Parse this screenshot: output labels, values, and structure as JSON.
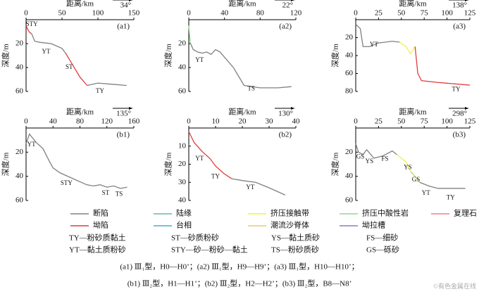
{
  "chart_data": [
    {
      "type": "line",
      "label": "(a1)",
      "direction": "34°",
      "xlabel": "距离/km",
      "ylabel": "深度/m",
      "xlim": [
        0,
        150
      ],
      "xticks": [
        0,
        50,
        100,
        150
      ],
      "ylim": [
        0,
        60
      ],
      "yticks": [
        20,
        40,
        60
      ],
      "series": [
        {
          "color": "#e03c3c",
          "x": [
            0,
            4,
            8
          ],
          "values": [
            5,
            10,
            12
          ]
        },
        {
          "color": "#808080",
          "x": [
            8,
            12,
            20,
            35,
            50,
            55
          ],
          "values": [
            12,
            18,
            19,
            20,
            24,
            28
          ]
        },
        {
          "color": "#e03c3c",
          "x": [
            55,
            65,
            75,
            85
          ],
          "values": [
            28,
            38,
            48,
            55
          ]
        },
        {
          "color": "#808080",
          "x": [
            85,
            100,
            120,
            140
          ],
          "values": [
            55,
            53,
            54,
            55
          ]
        }
      ],
      "annotations": [
        "STY",
        "YT",
        "ST",
        "TY"
      ]
    },
    {
      "type": "line",
      "label": "(a2)",
      "direction": "22°",
      "xlabel": "距离/km",
      "ylabel": "深度/m",
      "xlim": [
        0,
        120
      ],
      "xticks": [
        0,
        40,
        80,
        120
      ],
      "ylim": [
        0,
        60
      ],
      "yticks": [
        20,
        40,
        60
      ],
      "series": [
        {
          "color": "#8fd88f",
          "x": [
            0,
            1,
            2
          ],
          "values": [
            5,
            14,
            20
          ]
        },
        {
          "color": "#808080",
          "x": [
            2,
            5,
            10,
            15,
            20,
            25,
            30,
            35,
            50,
            62,
            80,
            100,
            115
          ],
          "values": [
            20,
            25,
            27,
            28,
            27,
            29,
            25,
            27,
            40,
            55,
            57,
            57,
            56
          ]
        }
      ],
      "annotations": [
        "YT",
        "TS"
      ]
    },
    {
      "type": "line",
      "label": "(a3)",
      "direction": "138°",
      "xlabel": "距离/km",
      "ylabel": "深度/m",
      "xlim": [
        0,
        125
      ],
      "xticks": [
        0,
        25,
        50,
        75,
        100,
        125
      ],
      "ylim": [
        0,
        80
      ],
      "yticks": [
        20,
        40,
        60,
        80
      ],
      "series": [
        {
          "color": "#808080",
          "x": [
            0,
            5,
            8,
            15,
            25,
            40,
            48
          ],
          "values": [
            5,
            10,
            30,
            30,
            26,
            24,
            25
          ]
        },
        {
          "color": "#f0f050",
          "x": [
            48,
            55,
            60,
            65
          ],
          "values": [
            25,
            30,
            38,
            30
          ]
        },
        {
          "color": "#e03c3c",
          "x": [
            65,
            68,
            72,
            90,
            125
          ],
          "values": [
            30,
            60,
            68,
            70,
            73
          ]
        }
      ],
      "annotations": [
        "YT",
        "TY"
      ]
    },
    {
      "type": "line",
      "label": "(b1)",
      "direction": "135°",
      "xlabel": "距离/km",
      "ylabel": "深度/m",
      "xlim": [
        0,
        160
      ],
      "xticks": [
        0,
        40,
        80,
        120,
        160
      ],
      "ylim": [
        0,
        60
      ],
      "yticks": [
        20,
        40,
        60
      ],
      "series": [
        {
          "color": "#808080",
          "x": [
            0,
            5,
            15,
            25,
            35,
            40,
            50,
            70,
            90,
            100,
            110,
            120,
            130,
            140,
            150
          ],
          "values": [
            13,
            5,
            12,
            17,
            28,
            33,
            37,
            42,
            47,
            48,
            47,
            49,
            48,
            50,
            49
          ]
        }
      ],
      "annotations": [
        "YT",
        "STY",
        "ST",
        "TS"
      ]
    },
    {
      "type": "line",
      "label": "(b2)",
      "direction": "130°",
      "xlabel": "距离/km",
      "ylabel": "深度/m",
      "xlim": [
        0,
        40
      ],
      "xticks": [
        0,
        10,
        20,
        30,
        40
      ],
      "ylim": [
        0,
        40
      ],
      "yticks": [
        10,
        20,
        30,
        40
      ],
      "series": [
        {
          "color": "#e03c3c",
          "x": [
            0,
            2,
            5,
            8,
            10,
            13,
            16
          ],
          "values": [
            2,
            8,
            13,
            17,
            21,
            25,
            28
          ]
        },
        {
          "color": "#808080",
          "x": [
            16,
            20,
            25,
            30,
            36
          ],
          "values": [
            28,
            29,
            30,
            33,
            37
          ]
        }
      ],
      "annotations": [
        "YT",
        "TY",
        "YT"
      ]
    },
    {
      "type": "line",
      "label": "(b3)",
      "direction": "298°",
      "xlabel": "距离/km",
      "ylabel": "深度/m",
      "xlim": [
        0,
        125
      ],
      "xticks": [
        0,
        25,
        50,
        75,
        100,
        125
      ],
      "ylim": [
        0,
        60
      ],
      "yticks": [
        20,
        40,
        60
      ],
      "series": [
        {
          "color": "#808080",
          "x": [
            0,
            3,
            8,
            12,
            20,
            30,
            40,
            45
          ],
          "values": [
            13,
            20,
            22,
            18,
            25,
            23,
            19,
            22
          ]
        },
        {
          "color": "#f0f050",
          "x": [
            45,
            55,
            60
          ],
          "values": [
            22,
            28,
            36
          ]
        },
        {
          "color": "#b8d860",
          "x": [
            60,
            65,
            70
          ],
          "values": [
            36,
            40,
            45
          ]
        },
        {
          "color": "#808080",
          "x": [
            70,
            80,
            90,
            120
          ],
          "values": [
            45,
            48,
            50,
            50
          ]
        }
      ],
      "annotations": [
        "GS",
        "YS",
        "FS",
        "YS",
        "GS",
        "YT",
        "TY"
      ]
    }
  ],
  "legend": [
    {
      "name": "断陷",
      "color": "#808080"
    },
    {
      "name": "陆缘",
      "color": "#5bbcb0"
    },
    {
      "name": "挤压接触带",
      "color": "#f0f050"
    },
    {
      "name": "挤压中酸性岩",
      "color": "#8fd88f"
    },
    {
      "name": "复理石",
      "color": "#f08080"
    },
    {
      "name": "坳陷",
      "color": "#e03c3c"
    },
    {
      "name": "台相",
      "color": "#4aa8e0"
    },
    {
      "name": "潮流沙脊体",
      "color": "#f0c860"
    },
    {
      "name": "坳拉槽",
      "color": "#8080d0"
    }
  ],
  "abbreviations": [
    "TY—粉砂质黏土",
    "ST—砂质粉砂",
    "YS—黏土质砂",
    "FS—细砂",
    "YT—黏土质粉砂",
    "STY—砂—粉砂—黏土",
    "TS—粉砂质砂",
    "GS—砾砂"
  ],
  "captions": [
    "(a1) Ⅲ₁型，H0—H0’；(a2) Ⅲ₁型，H9—H9’；(a3) Ⅲ₁型，H10—H10’；",
    "(b1) Ⅲ₂型，H1—H1’；(b2) Ⅲ₂型，H2—H2’；(b3) Ⅲ₂型，B8—N8’"
  ],
  "watermark": "©有色金属在线"
}
